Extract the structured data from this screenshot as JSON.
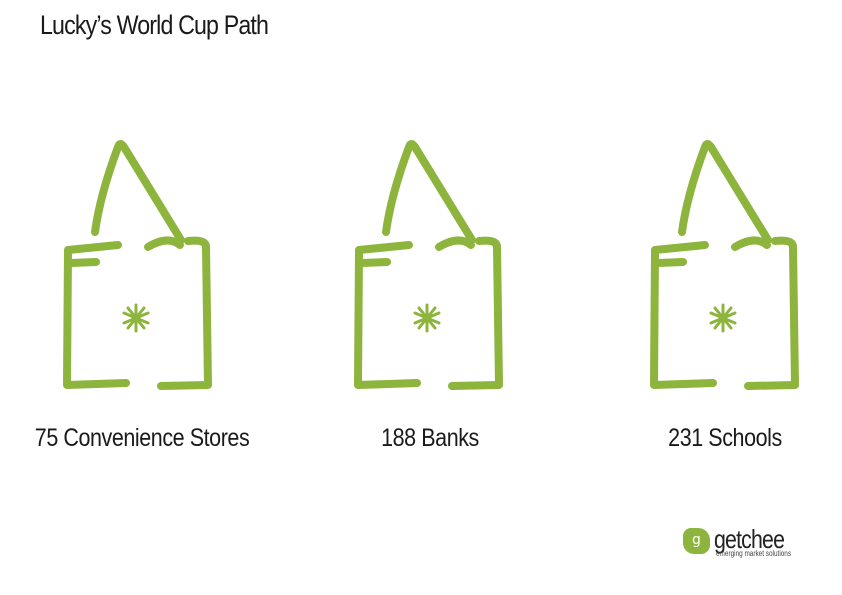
{
  "title": "Lucky’s World Cup Path",
  "accent_color": "#8db43c",
  "items": [
    {
      "label": "75 Convenience Stores",
      "icon": "bag-icon"
    },
    {
      "label": "188 Banks",
      "icon": "bag-icon"
    },
    {
      "label": "231 Schools",
      "icon": "bag-icon"
    }
  ],
  "logo": {
    "badge": "g",
    "name": "getchee",
    "tagline": "emerging market solutions"
  }
}
